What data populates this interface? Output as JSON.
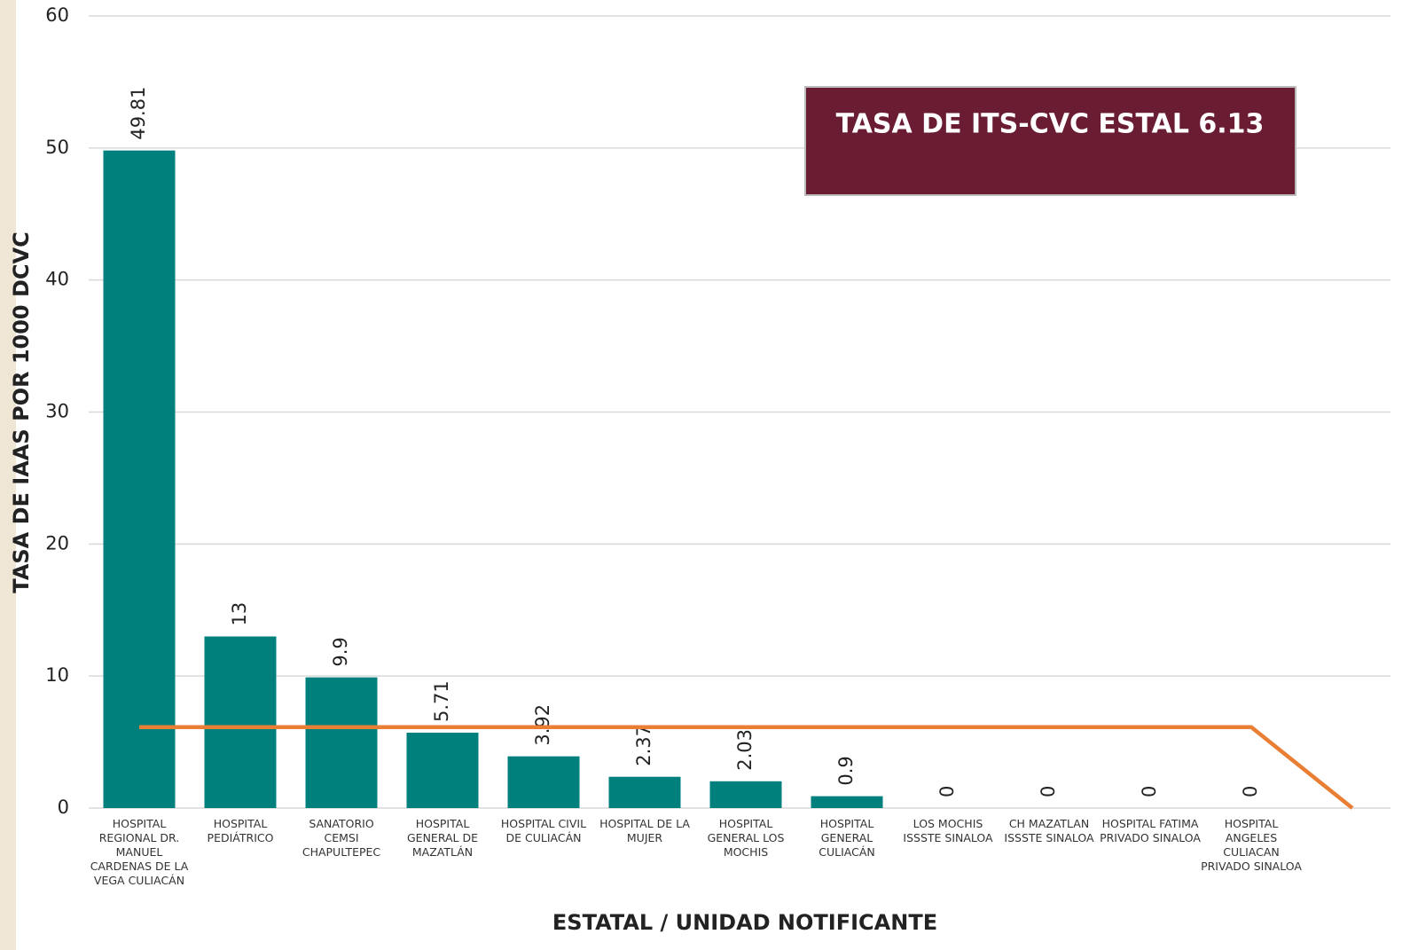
{
  "chart_data": {
    "type": "bar",
    "y_label": "TASA DE IAAS POR 1000 DCVC",
    "x_label": "ESTATAL / UNIDAD NOTIFICANTE",
    "annotation": "TASA DE ITS-CVC ESTAL  6.13",
    "categories": [
      "HOSPITAL REGIONAL DR. MANUEL CARDENAS DE LA VEGA CULIACÁN",
      "HOSPITAL PEDIÁTRICO",
      "SANATORIO CEMSI CHAPULTEPEC",
      "HOSPITAL GENERAL DE MAZATLÁN",
      "HOSPITAL CIVIL DE CULIACÁN",
      "HOSPITAL DE LA MUJER",
      "HOSPITAL GENERAL LOS MOCHIS",
      "HOSPITAL GENERAL CULIACÁN",
      "LOS MOCHIS ISSSTE SINALOA",
      "CH MAZATLAN ISSSTE SINALOA",
      "HOSPITAL FATIMA PRIVADO SINALOA",
      "HOSPITAL ANGELES CULIACAN PRIVADO SINALOA",
      null
    ],
    "series": [
      {
        "type": "bar",
        "color": "#00807c",
        "values": [
          49.81,
          13,
          9.9,
          5.71,
          3.92,
          2.37,
          2.03,
          0.9,
          0,
          0,
          0,
          0,
          null
        ]
      },
      {
        "type": "line",
        "color": "#e87f35",
        "values": [
          6.13,
          6.13,
          6.13,
          6.13,
          6.13,
          6.13,
          6.13,
          6.13,
          6.13,
          6.13,
          6.13,
          6.13,
          0
        ]
      }
    ],
    "ylim": [
      0,
      60
    ],
    "yticks": [
      0,
      10,
      20,
      30,
      40,
      50,
      60
    ],
    "grid": true
  }
}
